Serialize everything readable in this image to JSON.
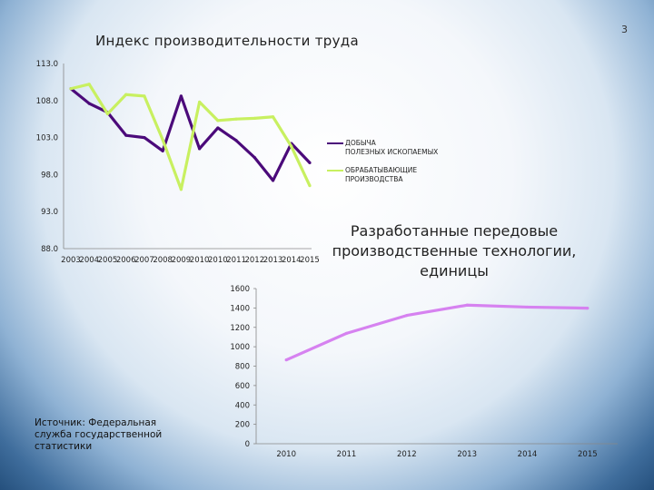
{
  "page_number": "3",
  "source_text": "Источник: Федеральная служба государственной статистики",
  "chart_data": [
    {
      "type": "line",
      "title": "Индекс производительности труда",
      "categories": [
        "2003",
        "2004",
        "2005",
        "2006",
        "2007",
        "2008",
        "2009",
        "2010",
        "2010",
        "2011",
        "2012",
        "2013",
        "2014",
        "2015"
      ],
      "y_ticks": [
        "113.0",
        "108.0",
        "103.0",
        "98.0",
        "93.0",
        "88.0"
      ],
      "ylim": [
        88,
        113
      ],
      "legend_position": "right",
      "series": [
        {
          "name": "ДОБЫЧА ПОЛЕЗНЫХ ИСКОПАЕМЫХ",
          "color": "#4b0a7a",
          "values": [
            109.6,
            107.6,
            106.4,
            103.3,
            103.0,
            101.2,
            108.6,
            101.5,
            104.3,
            102.6,
            100.3,
            97.2,
            102.2,
            99.6
          ]
        },
        {
          "name": "ОБРАБАТЫВАЮЩИЕ ПРОИЗВОДСТВА",
          "color": "#c8f060",
          "values": [
            109.6,
            110.2,
            106.2,
            108.8,
            108.6,
            102.7,
            96.0,
            107.8,
            105.3,
            105.5,
            105.6,
            105.8,
            101.8,
            96.5
          ]
        }
      ]
    },
    {
      "type": "line",
      "title": "Разработанные передовые производственные технологии, единицы",
      "categories": [
        "2010",
        "2011",
        "2012",
        "2013",
        "2014",
        "2015"
      ],
      "y_ticks": [
        "1600",
        "1400",
        "1200",
        "1000",
        "800",
        "600",
        "400",
        "200",
        "0"
      ],
      "ylim": [
        0,
        1600
      ],
      "series": [
        {
          "color": "#d682f0",
          "values": [
            864,
            1138,
            1323,
            1429,
            1409,
            1398
          ]
        }
      ]
    }
  ]
}
